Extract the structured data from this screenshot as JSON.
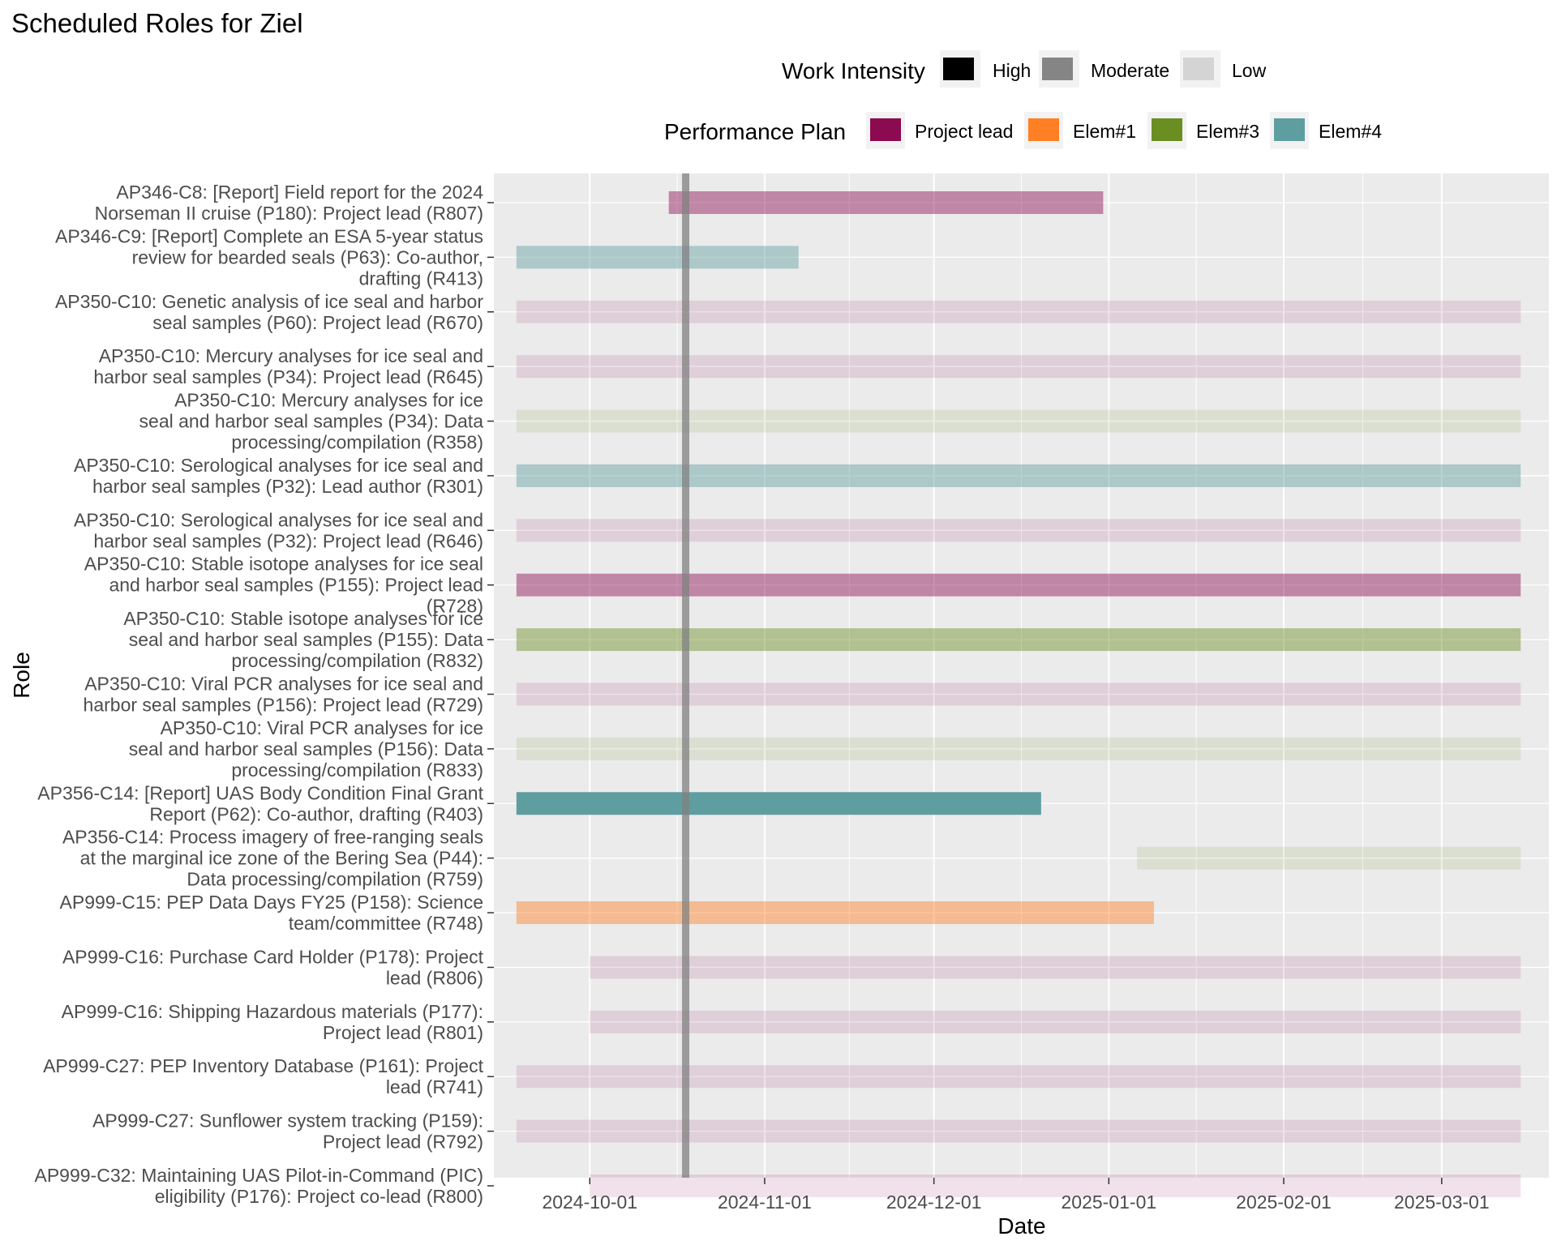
{
  "chart_data": {
    "type": "gantt",
    "title": "Scheduled Roles for Ziel",
    "xlabel": "Date",
    "ylabel": "Role",
    "x_range": [
      "2024-09-14",
      "2025-03-20"
    ],
    "x_ticks": [
      "2024-10-01",
      "2024-11-01",
      "2024-12-01",
      "2025-01-01",
      "2025-02-01",
      "2025-03-01"
    ],
    "reference_line_date": "2024-10-18",
    "grid": true,
    "legends": {
      "intensity": {
        "title": "Work Intensity",
        "items": [
          {
            "label": "High",
            "opacity": 1.0
          },
          {
            "label": "Moderate",
            "opacity": 0.45
          },
          {
            "label": "Low",
            "opacity": 0.12
          }
        ]
      },
      "plan": {
        "title": "Performance Plan",
        "items": [
          {
            "label": "Project lead",
            "color": "#8B0A50"
          },
          {
            "label": "Elem#1",
            "color": "#FF7F24"
          },
          {
            "label": "Elem#3",
            "color": "#6B8E23"
          },
          {
            "label": "Elem#4",
            "color": "#5F9EA0"
          }
        ]
      }
    },
    "rows": [
      {
        "label": [
          "AP346-C8: [Report] Field report for the 2024",
          "Norseman II cruise (P180): Project lead (R807)"
        ],
        "start": "2024-10-15",
        "end": "2024-12-31",
        "plan": "Project lead",
        "intensity": "Moderate"
      },
      {
        "label": [
          "AP346-C9: [Report] Complete an ESA 5-year status",
          "review for bearded seals (P63): Co-author,",
          "drafting (R413)"
        ],
        "start": "2024-09-18",
        "end": "2024-11-07",
        "plan": "Elem#4",
        "intensity": "Moderate"
      },
      {
        "label": [
          "AP350-C10: Genetic analysis of ice seal and harbor",
          "seal samples (P60): Project lead (R670)"
        ],
        "start": "2024-09-18",
        "end": "2025-03-15",
        "plan": "Project lead",
        "intensity": "Low"
      },
      {
        "label": [
          "AP350-C10: Mercury analyses for ice seal and",
          "harbor seal samples (P34): Project lead (R645)"
        ],
        "start": "2024-09-18",
        "end": "2025-03-15",
        "plan": "Project lead",
        "intensity": "Low"
      },
      {
        "label": [
          "AP350-C10: Mercury analyses for ice",
          "seal and harbor seal samples (P34): Data",
          "processing/compilation (R358)"
        ],
        "start": "2024-09-18",
        "end": "2025-03-15",
        "plan": "Elem#3",
        "intensity": "Low"
      },
      {
        "label": [
          "AP350-C10: Serological analyses for ice seal and",
          "harbor seal samples (P32): Lead author (R301)"
        ],
        "start": "2024-09-18",
        "end": "2025-03-15",
        "plan": "Elem#4",
        "intensity": "Moderate"
      },
      {
        "label": [
          "AP350-C10: Serological analyses for ice seal and",
          "harbor seal samples (P32): Project lead (R646)"
        ],
        "start": "2024-09-18",
        "end": "2025-03-15",
        "plan": "Project lead",
        "intensity": "Low"
      },
      {
        "label": [
          "AP350-C10: Stable isotope analyses for ice seal",
          "and harbor seal samples (P155): Project lead",
          "(R728)"
        ],
        "start": "2024-09-18",
        "end": "2025-03-15",
        "plan": "Project lead",
        "intensity": "Moderate"
      },
      {
        "label": [
          "AP350-C10: Stable isotope analyses for ice",
          "seal and harbor seal samples (P155): Data",
          "processing/compilation (R832)"
        ],
        "start": "2024-09-18",
        "end": "2025-03-15",
        "plan": "Elem#3",
        "intensity": "Moderate"
      },
      {
        "label": [
          "AP350-C10: Viral PCR analyses for ice seal and",
          "harbor seal samples (P156): Project lead (R729)"
        ],
        "start": "2024-09-18",
        "end": "2025-03-15",
        "plan": "Project lead",
        "intensity": "Low"
      },
      {
        "label": [
          "AP350-C10: Viral PCR analyses for ice",
          "seal and harbor seal samples (P156): Data",
          "processing/compilation (R833)"
        ],
        "start": "2024-09-18",
        "end": "2025-03-15",
        "plan": "Elem#3",
        "intensity": "Low"
      },
      {
        "label": [
          "AP356-C14: [Report] UAS Body Condition Final Grant",
          "Report (P62): Co-author, drafting (R403)"
        ],
        "start": "2024-09-18",
        "end": "2024-12-20",
        "plan": "Elem#4",
        "intensity": "High"
      },
      {
        "label": [
          "AP356-C14: Process imagery of free-ranging seals",
          "at the marginal ice zone of the Bering Sea (P44):",
          "Data processing/compilation (R759)"
        ],
        "start": "2025-01-06",
        "end": "2025-03-15",
        "plan": "Elem#3",
        "intensity": "Low"
      },
      {
        "label": [
          "AP999-C15: PEP Data Days FY25 (P158): Science",
          "team/committee (R748)"
        ],
        "start": "2024-09-18",
        "end": "2025-01-09",
        "plan": "Elem#1",
        "intensity": "Moderate"
      },
      {
        "label": [
          "AP999-C16: Purchase Card Holder (P178): Project",
          "lead (R806)"
        ],
        "start": "2024-10-01",
        "end": "2025-03-15",
        "plan": "Project lead",
        "intensity": "Low"
      },
      {
        "label": [
          "AP999-C16: Shipping Hazardous materials (P177):",
          "Project lead (R801)"
        ],
        "start": "2024-10-01",
        "end": "2025-03-15",
        "plan": "Project lead",
        "intensity": "Low"
      },
      {
        "label": [
          "AP999-C27: PEP Inventory Database (P161): Project",
          "lead (R741)"
        ],
        "start": "2024-09-18",
        "end": "2025-03-15",
        "plan": "Project lead",
        "intensity": "Low"
      },
      {
        "label": [
          "AP999-C27: Sunflower system tracking (P159):",
          "Project lead (R792)"
        ],
        "start": "2024-09-18",
        "end": "2025-03-15",
        "plan": "Project lead",
        "intensity": "Low"
      },
      {
        "label": [
          "AP999-C32: Maintaining UAS Pilot-in-Command (PIC)",
          "eligibility (P176): Project co-lead (R800)"
        ],
        "start": "2024-10-01",
        "end": "2025-03-15",
        "plan": "Project lead",
        "intensity": "Low"
      }
    ]
  }
}
